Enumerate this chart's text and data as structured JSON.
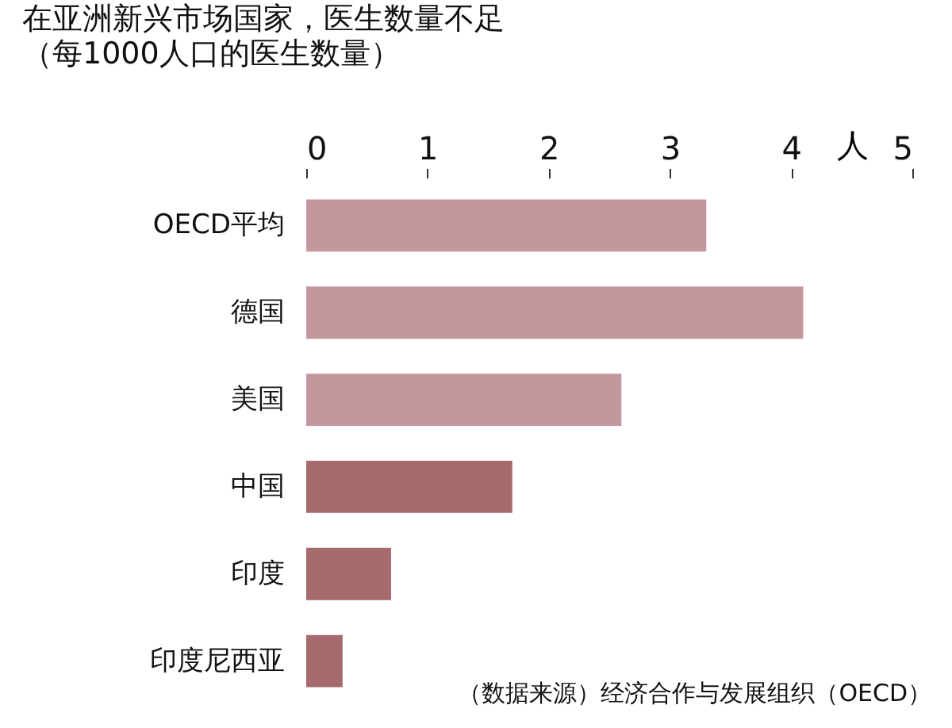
{
  "chart_data": {
    "type": "bar",
    "orientation": "horizontal",
    "title": "在亚洲新兴市场国家，医生数量不足",
    "subtitle": "（每1000人口的医生数量）",
    "xlabel": "人",
    "categories": [
      "OECD平均",
      "德国",
      "美国",
      "中国",
      "印度",
      "印度尼西亚"
    ],
    "values": [
      3.3,
      4.1,
      2.6,
      1.7,
      0.7,
      0.3
    ],
    "colors": [
      "#c4979f",
      "#c4979f",
      "#c4979f",
      "#a56a6c",
      "#a56a6c",
      "#a56a6c"
    ],
    "xlim": [
      0,
      5
    ],
    "xticks": [
      0,
      1,
      2,
      3,
      4,
      5
    ],
    "grid": false,
    "annotations": [
      "（数据来源）经济合作与发展组织（OECD）"
    ]
  }
}
